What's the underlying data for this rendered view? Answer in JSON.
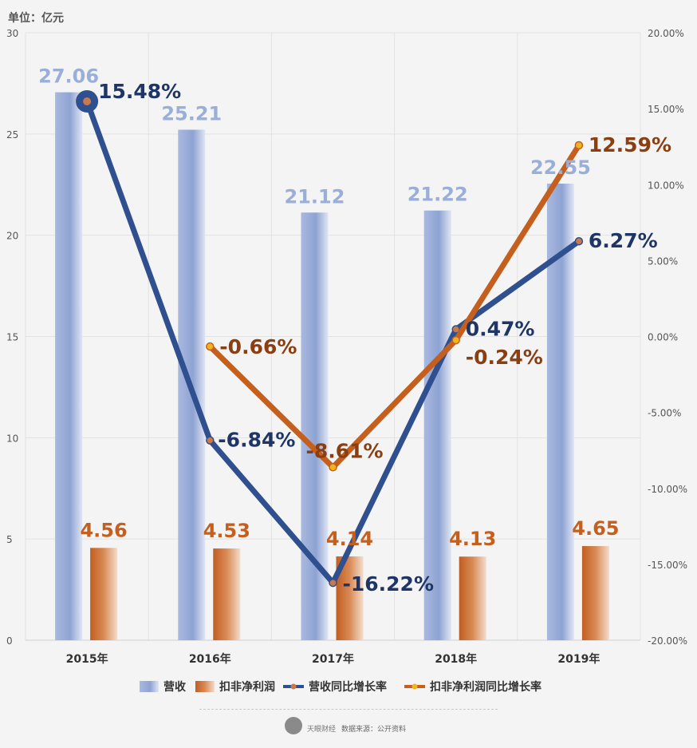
{
  "unit_label": "单位：亿元",
  "footer": {
    "brand": "天眼财经",
    "source": "数据来源：公开资料"
  },
  "colors": {
    "revenue_bar": "#8fa4d4",
    "profit_bar": "#c8692e",
    "revenue_line": "#2f4f8f",
    "profit_line": "#c55f1e",
    "revenue_text": "#1f3566",
    "profit_text": "#8a3f12",
    "revenue_bar_label": "#9aafd8"
  },
  "chart_data": {
    "type": "bar",
    "categories": [
      "2015年",
      "2016年",
      "2017年",
      "2018年",
      "2019年"
    ],
    "series": [
      {
        "name": "营收",
        "kind": "bar",
        "axis": "left",
        "values": [
          27.06,
          25.21,
          21.12,
          21.22,
          22.55
        ],
        "labels": [
          "27.06",
          "25.21",
          "21.12",
          "21.22",
          "22.55"
        ]
      },
      {
        "name": "扣非净利润",
        "kind": "bar",
        "axis": "left",
        "values": [
          4.56,
          4.53,
          4.14,
          4.13,
          4.65
        ],
        "labels": [
          "4.56",
          "4.53",
          "4.14",
          "4.13",
          "4.65"
        ]
      },
      {
        "name": "营收同比增长率",
        "kind": "line",
        "axis": "right",
        "values": [
          15.48,
          -6.84,
          -16.22,
          0.47,
          6.27
        ],
        "labels": [
          "15.48%",
          "-6.84%",
          "-16.22%",
          "0.47%",
          "6.27%"
        ]
      },
      {
        "name": "扣非净利润同比增长率",
        "kind": "line",
        "axis": "right",
        "values": [
          null,
          -0.66,
          -8.61,
          -0.24,
          12.59
        ],
        "labels": [
          "",
          "-0.66%",
          "-8.61%",
          "-0.24%",
          "12.59%"
        ]
      }
    ],
    "y_left": {
      "min": 0,
      "max": 30,
      "ticks": [
        0,
        5,
        10,
        15,
        20,
        25,
        30
      ],
      "tick_labels": [
        "0",
        "5",
        "10",
        "15",
        "20",
        "25",
        "30"
      ]
    },
    "y_right": {
      "min": -20,
      "max": 20,
      "ticks": [
        20,
        15,
        10,
        5,
        0,
        -5,
        -10,
        -15,
        -20
      ],
      "tick_labels": [
        "20.00%",
        "15.00%",
        "10.00%",
        "5.00%",
        "0.00%",
        "-5.00%",
        "-10.00%",
        "-15.00%",
        "-20.00%"
      ]
    },
    "grid": true,
    "legend": "bottom"
  }
}
